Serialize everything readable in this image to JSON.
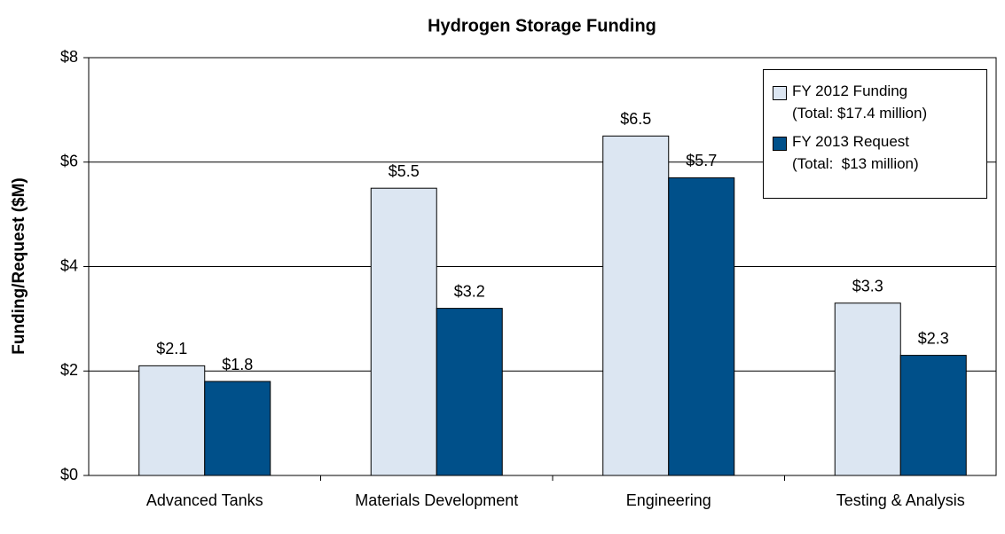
{
  "chart_data": {
    "type": "bar",
    "title": "Hydrogen Storage Funding",
    "ylabel": "Funding/Request ($M)",
    "categories": [
      "Advanced Tanks",
      "Materials Development",
      "Engineering",
      "Testing & Analysis"
    ],
    "series": [
      {
        "name": "FY 2012 Funding\n(Total: $17.4 million)",
        "color": "#dce6f2",
        "values": [
          2.1,
          5.5,
          6.5,
          3.3
        ],
        "value_labels": [
          "$2.1",
          "$5.5",
          "$6.5",
          "$3.3"
        ]
      },
      {
        "name": "FY 2013 Request\n(Total:  $13 million)",
        "color": "#00508a",
        "values": [
          1.8,
          3.2,
          5.7,
          2.3
        ],
        "value_labels": [
          "$1.8",
          "$3.2",
          "$5.7",
          "$2.3"
        ]
      }
    ],
    "ylim": [
      0,
      8
    ],
    "yticks": [
      {
        "value": 0,
        "label": "$0"
      },
      {
        "value": 2,
        "label": "$2"
      },
      {
        "value": 4,
        "label": "$4"
      },
      {
        "value": 6,
        "label": "$6"
      },
      {
        "value": 8,
        "label": "$8"
      }
    ],
    "grid": true,
    "legend": "upper right"
  }
}
